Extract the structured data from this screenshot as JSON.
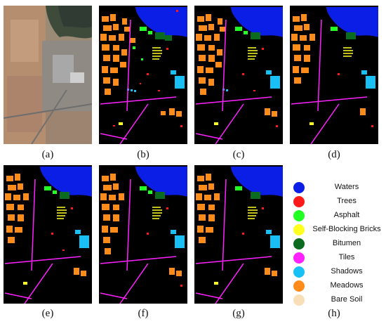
{
  "panels": [
    {
      "label": "(a)",
      "kind": "satellite"
    },
    {
      "label": "(b)",
      "kind": "classmap"
    },
    {
      "label": "(c)",
      "kind": "classmap"
    },
    {
      "label": "(d)",
      "kind": "classmap"
    },
    {
      "label": "(e)",
      "kind": "classmap"
    },
    {
      "label": "(f)",
      "kind": "classmap"
    },
    {
      "label": "(g)",
      "kind": "classmap"
    }
  ],
  "legend_caption": "(h)",
  "legend": [
    {
      "label": "Waters",
      "color": "#0a1ee6"
    },
    {
      "label": "Trees",
      "color": "#ff1a1a"
    },
    {
      "label": "Asphalt",
      "color": "#22ff22"
    },
    {
      "label": "Self-Blocking Bricks",
      "color": "#ffff22"
    },
    {
      "label": "Bitumen",
      "color": "#0b6b1e"
    },
    {
      "label": "Tiles",
      "color": "#ff22ff"
    },
    {
      "label": "Shadows",
      "color": "#19c0f5"
    },
    {
      "label": "Meadows",
      "color": "#ff8c1a"
    },
    {
      "label": "Bare Soil",
      "color": "#f8dfb8"
    }
  ]
}
